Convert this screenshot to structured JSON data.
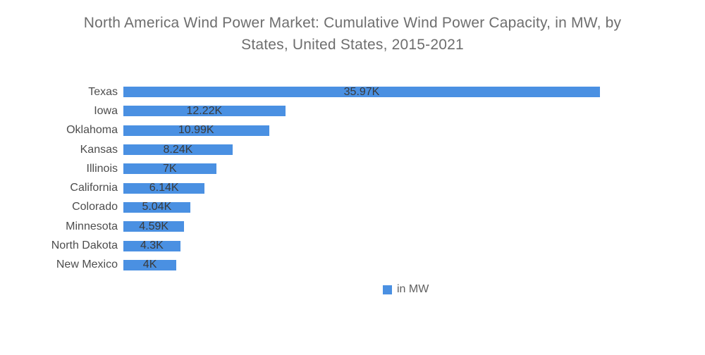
{
  "title": {
    "line1": "North America Wind Power Market: Cumulative Wind Power Capacity, in MW, by",
    "line2": "States, United States, 2015-2021"
  },
  "chart_data": {
    "type": "bar",
    "orientation": "horizontal",
    "title": "North America Wind Power Market: Cumulative Wind Power Capacity, in MW, by States, United States, 2015-2021",
    "categories": [
      "Texas",
      "Iowa",
      "Oklahoma",
      "Kansas",
      "Illinois",
      "California",
      "Colorado",
      "Minnesota",
      "North Dakota",
      "New Mexico"
    ],
    "values": [
      35970,
      12220,
      10990,
      8240,
      7000,
      6140,
      5040,
      4590,
      4300,
      4000
    ],
    "value_labels": [
      "35.97K",
      "12.22K",
      "10.99K",
      "8.24K",
      "7K",
      "6.14K",
      "5.04K",
      "4.59K",
      "4.3K",
      "4K"
    ],
    "xlabel": "",
    "ylabel": "",
    "xlim": [
      0,
      35970
    ],
    "grid": false,
    "bar_color": "#4a90e2",
    "legend": {
      "label": "in MW",
      "position": "bottom-center"
    }
  }
}
